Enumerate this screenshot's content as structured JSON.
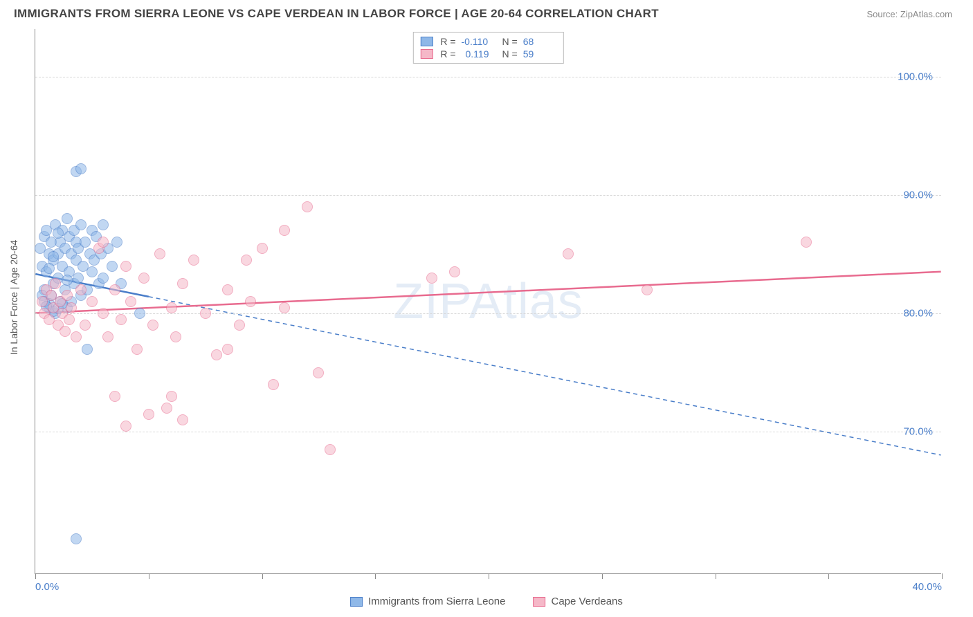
{
  "title": "IMMIGRANTS FROM SIERRA LEONE VS CAPE VERDEAN IN LABOR FORCE | AGE 20-64 CORRELATION CHART",
  "source": "Source: ZipAtlas.com",
  "watermark": "ZIPAtlas",
  "chart": {
    "type": "scatter",
    "background_color": "#ffffff",
    "grid_color": "#d8d8d8",
    "axis_color": "#888888",
    "label_color": "#4a7ec9",
    "title_color": "#444444",
    "xlim": [
      0,
      40
    ],
    "ylim": [
      58,
      104
    ],
    "x_ticks": [
      0,
      5,
      10,
      15,
      20,
      25,
      30,
      35,
      40
    ],
    "x_tick_labels": {
      "0": "0.0%",
      "40": "40.0%"
    },
    "y_ticks": [
      70,
      80,
      90,
      100
    ],
    "y_tick_labels": {
      "70": "70.0%",
      "80": "80.0%",
      "90": "90.0%",
      "100": "100.0%"
    },
    "y_axis_label": "In Labor Force | Age 20-64",
    "marker_radius": 8,
    "marker_opacity": 0.55,
    "line_width": 2.5,
    "series": [
      {
        "name": "Immigrants from Sierra Leone",
        "fill_color": "#8fb8e8",
        "stroke_color": "#4a7ec9",
        "R": "-0.110",
        "N": "68",
        "trend": {
          "x1": 0,
          "y1": 83.3,
          "x2": 40,
          "y2": 68.0,
          "solid_until_x": 5.0
        },
        "points": [
          [
            0.2,
            85.5
          ],
          [
            0.3,
            84.0
          ],
          [
            0.4,
            86.5
          ],
          [
            0.4,
            82.0
          ],
          [
            0.5,
            87.0
          ],
          [
            0.5,
            83.5
          ],
          [
            0.6,
            85.0
          ],
          [
            0.6,
            80.5
          ],
          [
            0.7,
            86.0
          ],
          [
            0.7,
            81.5
          ],
          [
            0.8,
            84.5
          ],
          [
            0.8,
            82.5
          ],
          [
            0.9,
            87.5
          ],
          [
            0.9,
            80.0
          ],
          [
            1.0,
            85.0
          ],
          [
            1.0,
            83.0
          ],
          [
            1.1,
            86.0
          ],
          [
            1.1,
            81.0
          ],
          [
            1.2,
            84.0
          ],
          [
            1.2,
            87.0
          ],
          [
            1.3,
            82.0
          ],
          [
            1.3,
            85.5
          ],
          [
            1.4,
            88.0
          ],
          [
            1.4,
            80.5
          ],
          [
            1.5,
            86.5
          ],
          [
            1.5,
            83.5
          ],
          [
            1.6,
            85.0
          ],
          [
            1.6,
            81.0
          ],
          [
            1.7,
            87.0
          ],
          [
            1.7,
            82.5
          ],
          [
            1.8,
            84.5
          ],
          [
            1.8,
            86.0
          ],
          [
            1.9,
            83.0
          ],
          [
            1.9,
            85.5
          ],
          [
            2.0,
            87.5
          ],
          [
            2.0,
            81.5
          ],
          [
            2.1,
            84.0
          ],
          [
            2.2,
            86.0
          ],
          [
            2.3,
            82.0
          ],
          [
            2.4,
            85.0
          ],
          [
            2.5,
            87.0
          ],
          [
            2.5,
            83.5
          ],
          [
            2.6,
            84.5
          ],
          [
            2.7,
            86.5
          ],
          [
            2.8,
            82.5
          ],
          [
            2.9,
            85.0
          ],
          [
            3.0,
            87.5
          ],
          [
            3.0,
            83.0
          ],
          [
            3.2,
            85.5
          ],
          [
            3.4,
            84.0
          ],
          [
            3.6,
            86.0
          ],
          [
            3.8,
            82.5
          ],
          [
            1.8,
            92.0
          ],
          [
            2.0,
            92.2
          ],
          [
            0.6,
            80.8
          ],
          [
            0.8,
            80.2
          ],
          [
            1.0,
            80.4
          ],
          [
            1.2,
            80.8
          ],
          [
            0.3,
            81.5
          ],
          [
            0.4,
            81.0
          ],
          [
            0.5,
            80.6
          ],
          [
            0.6,
            83.8
          ],
          [
            0.8,
            84.8
          ],
          [
            1.0,
            86.8
          ],
          [
            1.4,
            82.8
          ],
          [
            4.6,
            80.0
          ],
          [
            2.3,
            77.0
          ],
          [
            1.8,
            61.0
          ]
        ]
      },
      {
        "name": "Cape Verdeans",
        "fill_color": "#f5b8c8",
        "stroke_color": "#e86b8f",
        "R": "0.119",
        "N": "59",
        "trend": {
          "x1": 0,
          "y1": 80.0,
          "x2": 40,
          "y2": 83.5,
          "solid_until_x": 40
        },
        "points": [
          [
            0.3,
            81.0
          ],
          [
            0.4,
            80.0
          ],
          [
            0.5,
            82.0
          ],
          [
            0.6,
            79.5
          ],
          [
            0.7,
            81.5
          ],
          [
            0.8,
            80.5
          ],
          [
            0.9,
            82.5
          ],
          [
            1.0,
            79.0
          ],
          [
            1.1,
            81.0
          ],
          [
            1.2,
            80.0
          ],
          [
            1.3,
            78.5
          ],
          [
            1.4,
            81.5
          ],
          [
            1.5,
            79.5
          ],
          [
            1.6,
            80.5
          ],
          [
            1.8,
            78.0
          ],
          [
            2.0,
            82.0
          ],
          [
            2.2,
            79.0
          ],
          [
            2.5,
            81.0
          ],
          [
            2.8,
            85.5
          ],
          [
            3.0,
            80.0
          ],
          [
            3.0,
            86.0
          ],
          [
            3.2,
            78.0
          ],
          [
            3.5,
            82.0
          ],
          [
            3.5,
            73.0
          ],
          [
            3.8,
            79.5
          ],
          [
            4.0,
            84.0
          ],
          [
            4.0,
            70.5
          ],
          [
            4.2,
            81.0
          ],
          [
            4.5,
            77.0
          ],
          [
            4.8,
            83.0
          ],
          [
            5.0,
            71.5
          ],
          [
            5.2,
            79.0
          ],
          [
            5.5,
            85.0
          ],
          [
            5.8,
            72.0
          ],
          [
            6.0,
            80.5
          ],
          [
            6.0,
            73.0
          ],
          [
            6.2,
            78.0
          ],
          [
            6.5,
            82.5
          ],
          [
            6.5,
            71.0
          ],
          [
            7.0,
            84.5
          ],
          [
            7.5,
            80.0
          ],
          [
            8.0,
            76.5
          ],
          [
            8.5,
            82.0
          ],
          [
            8.5,
            77.0
          ],
          [
            9.0,
            79.0
          ],
          [
            9.5,
            81.0
          ],
          [
            10.0,
            85.5
          ],
          [
            10.5,
            74.0
          ],
          [
            11.0,
            87.0
          ],
          [
            11.0,
            80.5
          ],
          [
            12.0,
            89.0
          ],
          [
            12.5,
            75.0
          ],
          [
            13.0,
            68.5
          ],
          [
            17.5,
            83.0
          ],
          [
            18.5,
            83.5
          ],
          [
            23.5,
            85.0
          ],
          [
            27.0,
            82.0
          ],
          [
            34.0,
            86.0
          ],
          [
            9.3,
            84.5
          ]
        ]
      }
    ],
    "legend_labels": {
      "series1": "Immigrants from Sierra Leone",
      "series2": "Cape Verdeans",
      "r_prefix": "R =",
      "n_prefix": "N ="
    }
  }
}
